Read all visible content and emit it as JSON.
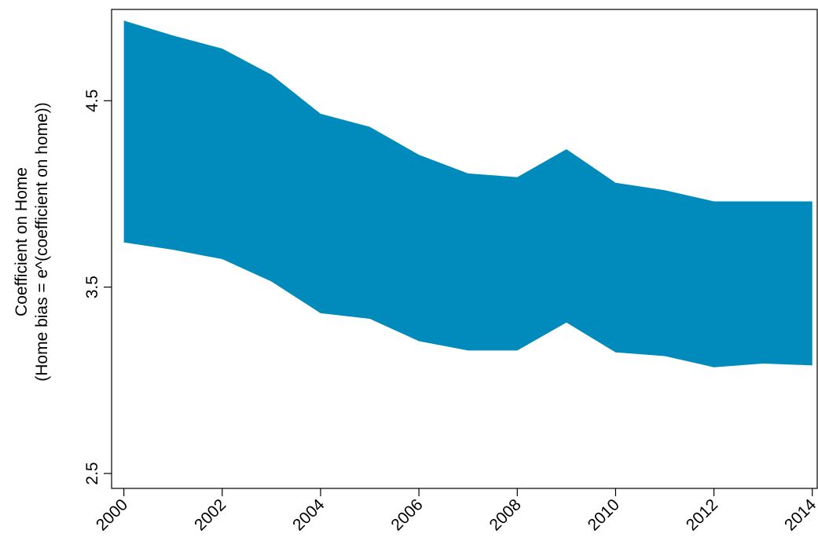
{
  "chart_data": {
    "type": "range_area",
    "ylabel": [
      "Coefficient on Home",
      "(Home bias = e^(coefficient on home))"
    ],
    "x": [
      2000,
      2001,
      2002,
      2003,
      2004,
      2005,
      2006,
      2007,
      2008,
      2009,
      2010,
      2011,
      2012,
      2013,
      2014
    ],
    "upper": [
      4.93,
      4.85,
      4.78,
      4.64,
      4.43,
      4.36,
      4.21,
      4.11,
      4.09,
      4.24,
      4.06,
      4.02,
      3.96,
      3.96,
      3.96
    ],
    "lower": [
      3.74,
      3.7,
      3.65,
      3.53,
      3.36,
      3.33,
      3.21,
      3.16,
      3.16,
      3.31,
      3.15,
      3.13,
      3.07,
      3.09,
      3.08
    ],
    "color": "#008bbc",
    "xlim": [
      1999.75,
      2014.1
    ],
    "xticks": [
      2000,
      2002,
      2004,
      2006,
      2008,
      2010,
      2012,
      2014
    ],
    "ylim": [
      2.42,
      4.99
    ],
    "yticks": [
      2.5,
      3.5,
      4.5
    ]
  }
}
